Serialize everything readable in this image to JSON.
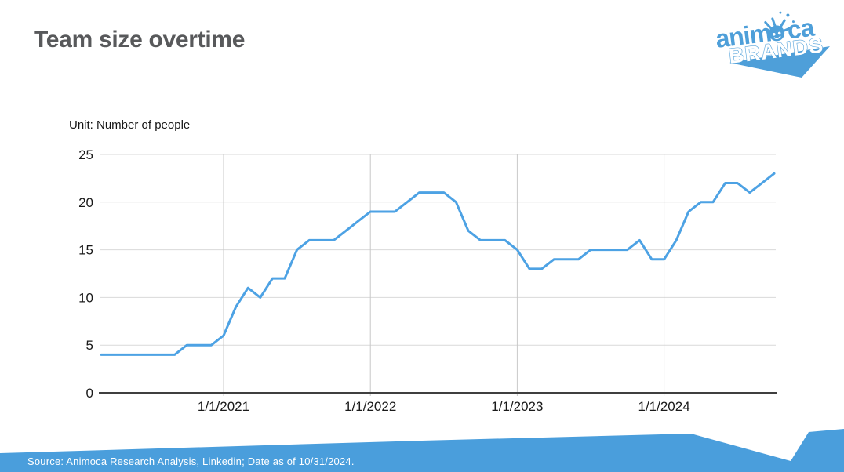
{
  "slide": {
    "title": "Team size overtime",
    "unit_label": "Unit: Number of people",
    "source_text": "Source: Animoca Research Analysis, Linkedin; Date as of 10/31/2024."
  },
  "logo": {
    "text_anim": "anim",
    "text_ca": "ca",
    "text_brands": "BRANDS"
  },
  "colors": {
    "line_blue": "#4DA2E4",
    "logo_blue": "#4E9FD9",
    "footer_blue": "#4A9EDC",
    "grid_gray": "#D9D9D9",
    "year_grid_gray": "#C8C8C8",
    "axis_dark": "#3F3F3F",
    "label_dark": "#1A1A1A",
    "title_gray": "#58595B"
  },
  "chart_data": {
    "type": "line",
    "series_name": "Team size (number of people)",
    "x": [
      "3/2020",
      "4/2020",
      "5/2020",
      "6/2020",
      "7/2020",
      "8/2020",
      "9/2020",
      "10/2020",
      "11/2020",
      "12/2020",
      "1/2021",
      "2/2021",
      "3/2021",
      "4/2021",
      "5/2021",
      "6/2021",
      "7/2021",
      "8/2021",
      "9/2021",
      "10/2021",
      "11/2021",
      "12/2021",
      "1/2022",
      "2/2022",
      "3/2022",
      "4/2022",
      "5/2022",
      "6/2022",
      "7/2022",
      "8/2022",
      "9/2022",
      "10/2022",
      "11/2022",
      "12/2022",
      "1/2023",
      "2/2023",
      "3/2023",
      "4/2023",
      "5/2023",
      "6/2023",
      "7/2023",
      "8/2023",
      "9/2023",
      "10/2023",
      "11/2023",
      "12/2023",
      "1/2024",
      "2/2024",
      "3/2024",
      "4/2024",
      "5/2024",
      "6/2024",
      "7/2024",
      "8/2024",
      "9/2024",
      "10/2024"
    ],
    "values": [
      4,
      4,
      4,
      4,
      4,
      4,
      4,
      5,
      5,
      5,
      6,
      9,
      11,
      10,
      12,
      12,
      15,
      16,
      16,
      16,
      17,
      18,
      19,
      19,
      19,
      20,
      21,
      21,
      21,
      20,
      17,
      16,
      16,
      16,
      15,
      13,
      13,
      14,
      14,
      14,
      15,
      15,
      15,
      15,
      16,
      14,
      14,
      16,
      19,
      20,
      20,
      22,
      22,
      21,
      22,
      23
    ],
    "title": "",
    "xlabel": "",
    "ylabel": "Unit: Number of people",
    "ylim": [
      0,
      25
    ],
    "yticks": [
      0,
      5,
      10,
      15,
      20,
      25
    ],
    "xticks": [
      {
        "index": 10,
        "label": "1/1/2021"
      },
      {
        "index": 22,
        "label": "1/1/2022"
      },
      {
        "index": 34,
        "label": "1/1/2023"
      },
      {
        "index": 46,
        "label": "1/1/2024"
      }
    ],
    "grid": true,
    "legend": false
  }
}
